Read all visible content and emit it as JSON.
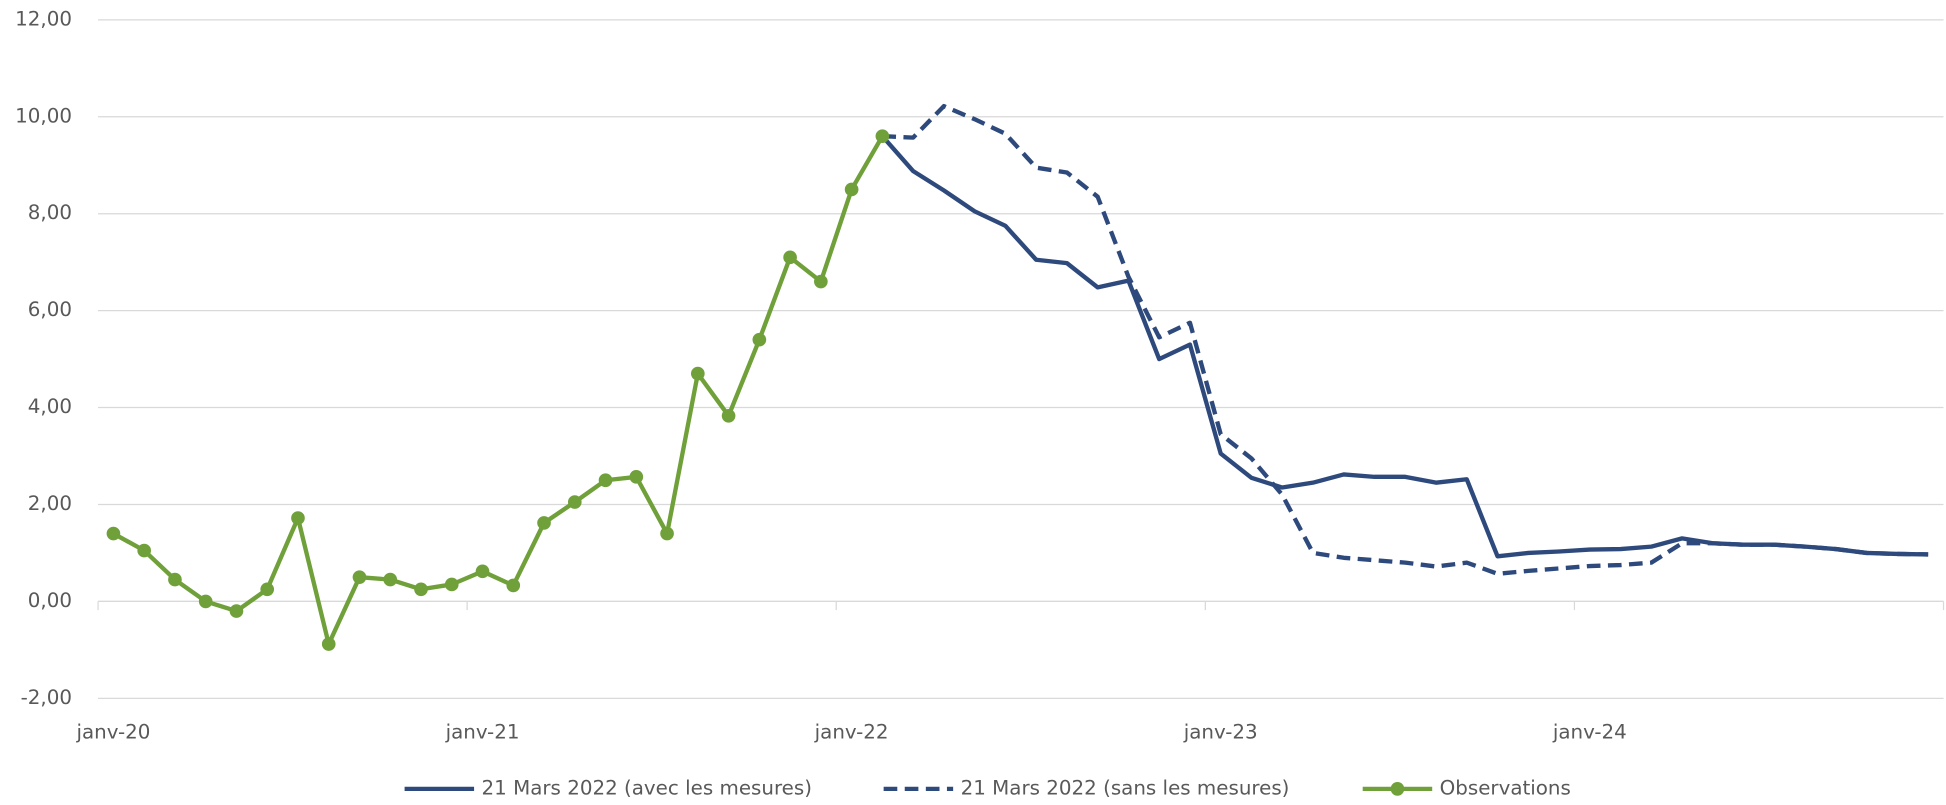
{
  "chart_data": {
    "type": "line",
    "x": [
      "janv-20",
      null,
      null,
      null,
      null,
      null,
      null,
      null,
      null,
      null,
      null,
      null,
      "janv-21",
      null,
      null,
      null,
      null,
      null,
      null,
      null,
      null,
      null,
      null,
      null,
      "janv-22",
      null,
      null,
      null,
      null,
      null,
      null,
      null,
      null,
      null,
      null,
      null,
      "janv-23",
      null,
      null,
      null,
      null,
      null,
      null,
      null,
      null,
      null,
      null,
      null,
      "janv-24",
      null,
      null,
      null,
      null,
      null,
      null,
      null,
      null,
      null,
      null,
      null
    ],
    "ylim": [
      -2,
      12
    ],
    "yticks": [
      {
        "value": -2,
        "label": "-2,00"
      },
      {
        "value": 0,
        "label": "0,00"
      },
      {
        "value": 2,
        "label": "2,00"
      },
      {
        "value": 4,
        "label": "4,00"
      },
      {
        "value": 6,
        "label": "6,00"
      },
      {
        "value": 8,
        "label": "8,00"
      },
      {
        "value": 10,
        "label": "10,00"
      },
      {
        "value": 12,
        "label": "12,00"
      }
    ],
    "grid": true,
    "legend": "bottom",
    "series": [
      {
        "name": "21 Mars 2022 (avec les mesures)",
        "color": "#2e4a7d",
        "dash": false,
        "markers": false,
        "values": [
          null,
          null,
          null,
          null,
          null,
          null,
          null,
          null,
          null,
          null,
          null,
          null,
          null,
          null,
          null,
          null,
          null,
          null,
          null,
          null,
          null,
          null,
          null,
          null,
          null,
          9.6,
          8.88,
          8.48,
          8.05,
          7.75,
          7.05,
          6.98,
          6.48,
          6.62,
          5.0,
          5.3,
          3.05,
          2.55,
          2.35,
          2.45,
          2.62,
          2.57,
          2.57,
          2.45,
          2.52,
          0.93,
          1.0,
          1.03,
          1.07,
          1.08,
          1.13,
          1.3,
          1.2,
          1.17,
          1.17,
          1.13,
          1.08,
          1.0,
          0.98,
          0.97
        ]
      },
      {
        "name": "21 Mars 2022 (sans les mesures)",
        "color": "#2e4a7d",
        "dash": true,
        "markers": false,
        "values": [
          null,
          null,
          null,
          null,
          null,
          null,
          null,
          null,
          null,
          null,
          null,
          null,
          null,
          null,
          null,
          null,
          null,
          null,
          null,
          null,
          null,
          null,
          null,
          null,
          null,
          9.6,
          9.57,
          10.22,
          9.95,
          9.65,
          8.95,
          8.85,
          8.35,
          6.7,
          5.45,
          5.75,
          3.45,
          2.95,
          2.2,
          1.0,
          0.9,
          0.85,
          0.8,
          0.72,
          0.8,
          0.57,
          0.63,
          0.68,
          0.73,
          0.75,
          0.8,
          1.2,
          1.2,
          1.17,
          1.17,
          1.13,
          1.08,
          1.0,
          0.98,
          0.97
        ]
      },
      {
        "name": "Observations",
        "color": "#70a03a",
        "dash": false,
        "markers": true,
        "values": [
          1.4,
          1.05,
          0.45,
          0.0,
          -0.2,
          0.25,
          1.72,
          -0.88,
          0.5,
          0.45,
          0.25,
          0.35,
          0.62,
          0.33,
          1.62,
          2.05,
          2.5,
          2.57,
          1.4,
          4.7,
          3.83,
          5.4,
          7.1,
          6.6,
          8.5,
          9.6,
          null,
          null,
          null,
          null,
          null,
          null,
          null,
          null,
          null,
          null,
          null,
          null,
          null,
          null,
          null,
          null,
          null,
          null,
          null,
          null,
          null,
          null,
          null,
          null,
          null,
          null,
          null,
          null,
          null,
          null,
          null,
          null,
          null,
          null
        ]
      }
    ]
  }
}
